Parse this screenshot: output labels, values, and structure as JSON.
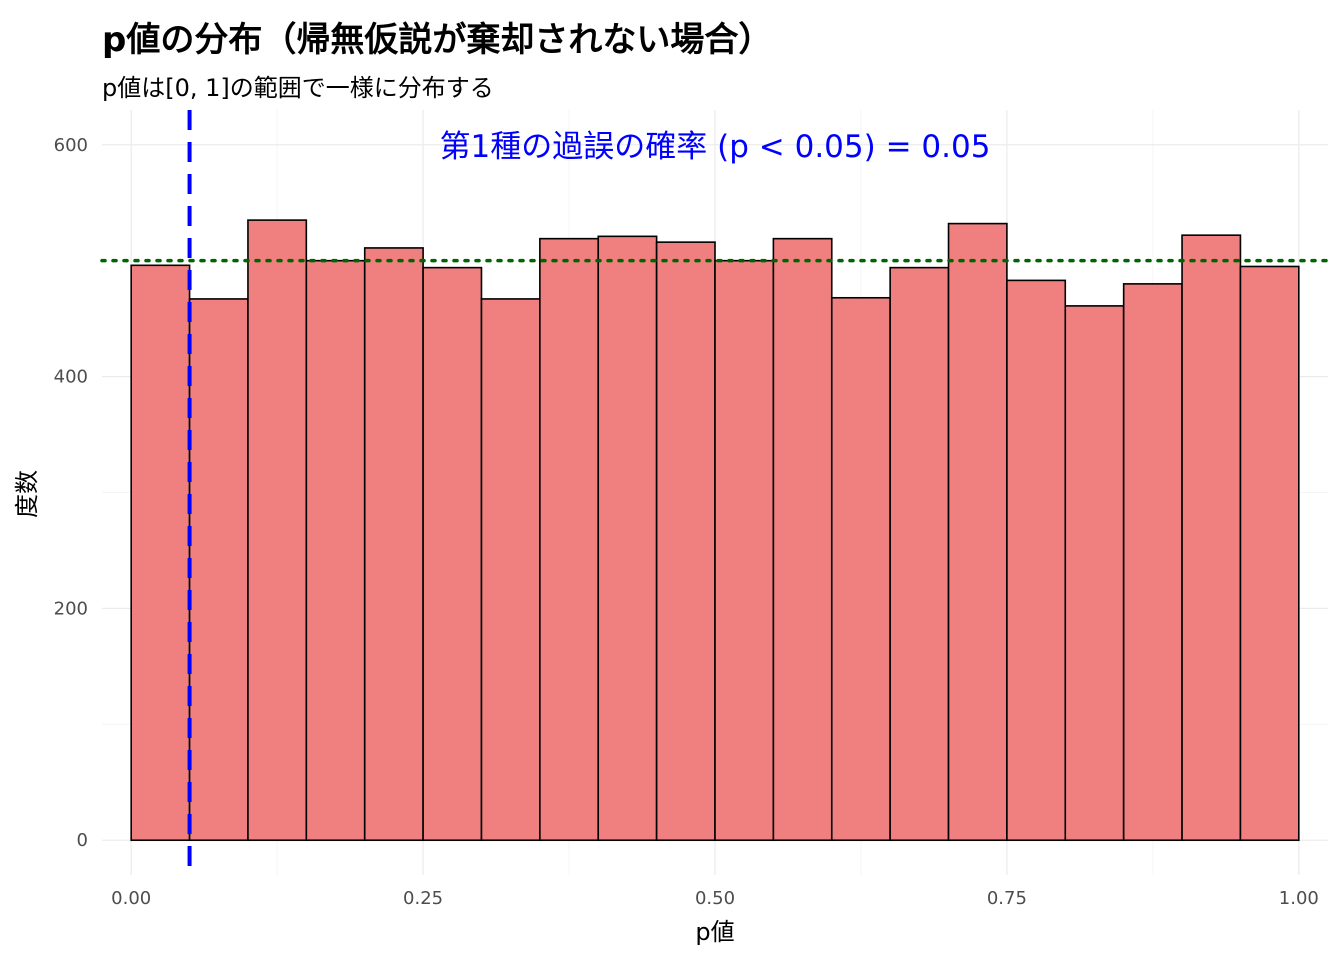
{
  "chart_data": {
    "type": "bar",
    "title": "p値の分布（帰無仮説が棄却されない場合）",
    "subtitle": "p値は[0, 1]の範囲で一様に分布する",
    "xlabel": "p値",
    "ylabel": "度数",
    "xlim": [
      -0.025,
      1.025
    ],
    "ylim": [
      -30,
      630
    ],
    "x_ticks": [
      0.0,
      0.25,
      0.5,
      0.75,
      1.0
    ],
    "x_tick_labels": [
      "0.00",
      "0.25",
      "0.50",
      "0.75",
      "1.00"
    ],
    "y_ticks": [
      0,
      200,
      400,
      600
    ],
    "y_tick_labels": [
      "0",
      "200",
      "400",
      "600"
    ],
    "bin_width": 0.05,
    "bin_starts": [
      0.0,
      0.05,
      0.1,
      0.15,
      0.2,
      0.25,
      0.3,
      0.35,
      0.4,
      0.45,
      0.5,
      0.55,
      0.6,
      0.65,
      0.7,
      0.75,
      0.8,
      0.85,
      0.9,
      0.95
    ],
    "values": [
      496,
      467,
      535,
      500,
      511,
      494,
      467,
      519,
      521,
      516,
      500,
      519,
      468,
      494,
      532,
      483,
      461,
      480,
      522,
      495
    ],
    "reference_lines": {
      "vertical": {
        "x": 0.05,
        "style": "dashed",
        "color": "#0000ff"
      },
      "horizontal": {
        "y": 500,
        "style": "dotted",
        "color": "#006400"
      }
    },
    "annotation": {
      "text": "第1種の過誤の確率 (p < 0.05) = 0.05",
      "x": 0.5,
      "y": 600,
      "color": "#0000ff"
    },
    "grid": true,
    "legend": "none"
  },
  "colors": {
    "bar_fill": "#f08080",
    "bar_stroke": "#000000",
    "grid_major": "#ebebeb",
    "grid_minor": "#f5f5f5"
  }
}
